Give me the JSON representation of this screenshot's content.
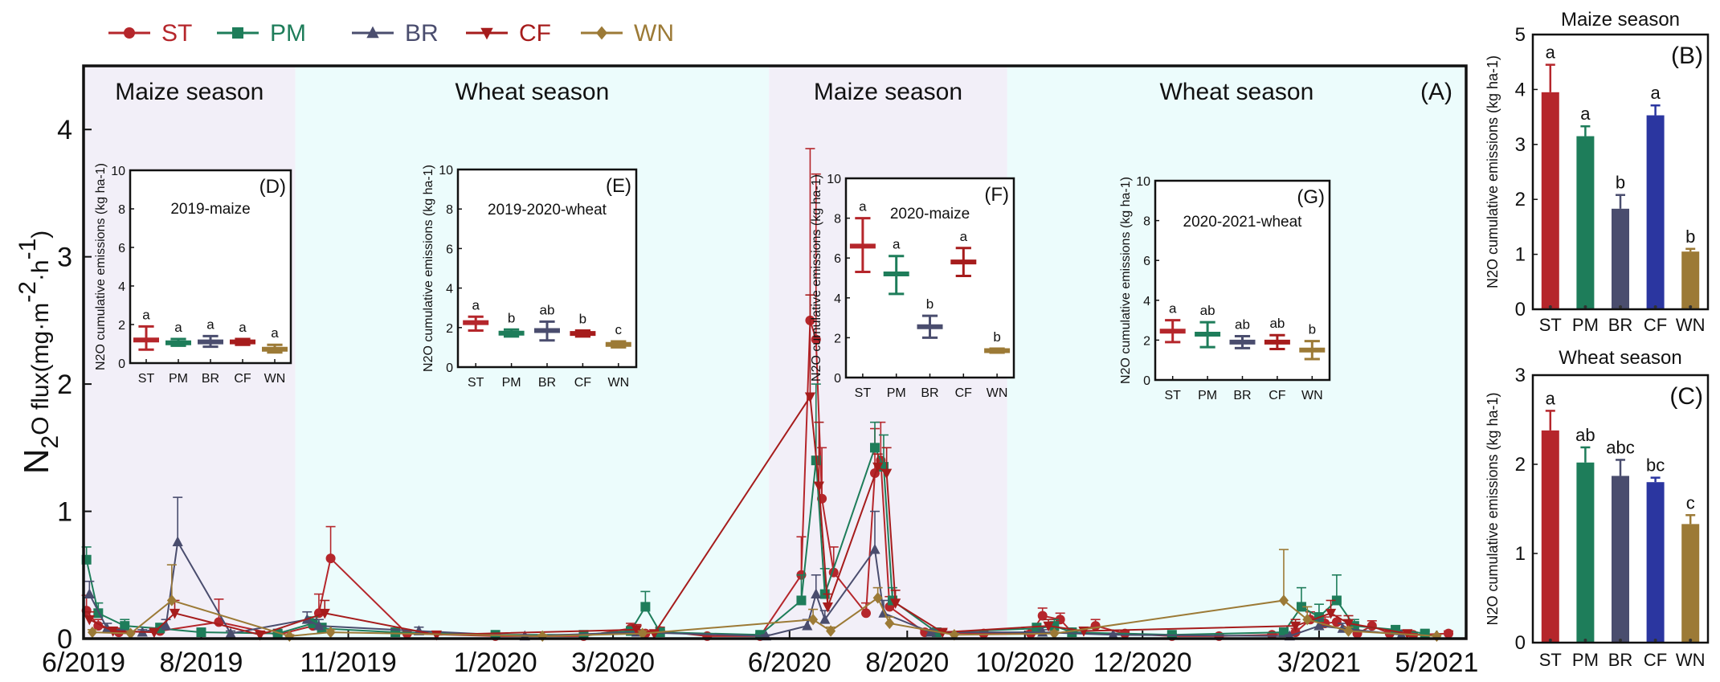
{
  "colors": {
    "ST": "#b5262b",
    "PM": "#1e7d5a",
    "BR": "#4a4d6e",
    "CF": "#a61c1c",
    "WN": "#9c7a36",
    "bar_CF": "#2b36a0",
    "maize_bg": "#f2eff8",
    "wheat_bg": "#ecfcfc"
  },
  "legend": {
    "items": [
      {
        "label": "ST",
        "marker": "circle"
      },
      {
        "label": "PM",
        "marker": "square"
      },
      {
        "label": "BR",
        "marker": "triangle-up"
      },
      {
        "label": "CF",
        "marker": "triangle-down"
      },
      {
        "label": "WN",
        "marker": "diamond"
      }
    ]
  },
  "chart_data": [
    {
      "id": "A",
      "type": "line",
      "panel_label": "(A)",
      "ylabel": "N2O flux(mg·m-2·h-1)",
      "ylabel_parts": [
        "N",
        "2",
        "O flux(mg·m",
        "-2",
        "·h",
        "-1",
        ")"
      ],
      "ylim": [
        0,
        4.5
      ],
      "yticks": [
        0,
        1,
        2,
        3,
        4
      ],
      "xlim": [
        0,
        23.5
      ],
      "xticks": [
        {
          "m": 0,
          "label": "6/2019"
        },
        {
          "m": 2,
          "label": "8/2019"
        },
        {
          "m": 4.5,
          "label": "11/2019"
        },
        {
          "m": 7,
          "label": "1/2020"
        },
        {
          "m": 9,
          "label": "3/2020"
        },
        {
          "m": 12,
          "label": "6/2020"
        },
        {
          "m": 14,
          "label": "8/2020"
        },
        {
          "m": 16,
          "label": "10/2020"
        },
        {
          "m": 18,
          "label": "12/2020"
        },
        {
          "m": 21,
          "label": "3/2021"
        },
        {
          "m": 23,
          "label": "5/2021"
        }
      ],
      "seasons": [
        {
          "label": "Maize season",
          "type": "maize",
          "start": 0,
          "end": 3.6
        },
        {
          "label": "Wheat season",
          "type": "wheat",
          "start": 3.6,
          "end": 11.65
        },
        {
          "label": "Maize season",
          "type": "maize",
          "start": 11.65,
          "end": 15.7
        },
        {
          "label": "Wheat season",
          "type": "wheat",
          "start": 15.7,
          "end": 23.5
        }
      ],
      "series": [
        {
          "name": "ST",
          "x": [
            0.05,
            0.25,
            0.6,
            1.3,
            2.3,
            3.3,
            3.9,
            4,
            4.2,
            5.5,
            7,
            8.5,
            9.3,
            9.55,
            9.8,
            10.6,
            11.5,
            12.2,
            12.35,
            12.45,
            12.55,
            12.75,
            13.3,
            13.45,
            13.55,
            13.7,
            14.3,
            15.3,
            16.1,
            16.3,
            16.6,
            16.8,
            17.2,
            17.7,
            18.5,
            19.3,
            20.2,
            20.6,
            20.85,
            21.1,
            21.3,
            21.65,
            21.9,
            22.2,
            22.6,
            23.2
          ],
          "y": [
            0.22,
            0.1,
            0.05,
            0.06,
            0.13,
            0.03,
            0.1,
            0.2,
            0.63,
            0.04,
            0.02,
            0.02,
            0.08,
            0.04,
            0.06,
            0.02,
            0.02,
            0.5,
            2.5,
            2.35,
            1.1,
            0.52,
            0.2,
            1.3,
            1.4,
            0.25,
            0.05,
            0.04,
            0.04,
            0.18,
            0.15,
            0.05,
            0.1,
            0.04,
            0.02,
            0.02,
            0.03,
            0.05,
            0.15,
            0.12,
            0.13,
            0.04,
            0.1,
            0.04,
            0.03,
            0.04
          ],
          "err": [
            0.12,
            0.05,
            0.03,
            0.03,
            0.18,
            0.02,
            0.05,
            0.15,
            0.25,
            0.02,
            0.01,
            0.01,
            0.04,
            0.02,
            0.03,
            0.01,
            0.01,
            0.3,
            1.35,
            1.3,
            0.4,
            0.2,
            0.08,
            0.35,
            0.3,
            0.08,
            0.02,
            0.02,
            0.02,
            0.06,
            0.05,
            0.03,
            0.05,
            0.02,
            0.01,
            0.01,
            0.01,
            0.03,
            0.06,
            0.05,
            0.05,
            0.02,
            0.04,
            0.02,
            0.02,
            0.02
          ]
        },
        {
          "name": "PM",
          "x": [
            0.05,
            0.25,
            0.7,
            1.3,
            2,
            3.3,
            3.9,
            4.05,
            5.3,
            7,
            8.5,
            9.3,
            9.55,
            9.8,
            11.5,
            12.2,
            12.45,
            12.6,
            13.45,
            13.6,
            13.75,
            14.5,
            16.2,
            16.5,
            16.8,
            18.5,
            20.4,
            20.7,
            21.0,
            21.3,
            21.6,
            22.3,
            22.8
          ],
          "y": [
            0.62,
            0.2,
            0.1,
            0.08,
            0.05,
            0.04,
            0.12,
            0.08,
            0.05,
            0.03,
            0.03,
            0.06,
            0.25,
            0.05,
            0.03,
            0.3,
            1.4,
            0.35,
            1.5,
            1.35,
            0.3,
            0.05,
            0.08,
            0.1,
            0.05,
            0.03,
            0.05,
            0.25,
            0.17,
            0.3,
            0.1,
            0.07,
            0.04
          ],
          "err": [
            0.1,
            0.08,
            0.05,
            0.04,
            0.02,
            0.02,
            0.05,
            0.04,
            0.02,
            0.01,
            0.01,
            0.03,
            0.12,
            0.02,
            0.01,
            0.2,
            0.6,
            0.2,
            0.2,
            0.25,
            0.1,
            0.02,
            0.04,
            0.05,
            0.02,
            0.01,
            0.02,
            0.15,
            0.1,
            0.2,
            0.05,
            0.03,
            0.02
          ]
        },
        {
          "name": "BR",
          "x": [
            0.1,
            0.4,
            1.0,
            1.4,
            1.6,
            2.5,
            3.8,
            4.0,
            5.7,
            7.5,
            9.4,
            11.6,
            12.3,
            12.45,
            12.6,
            13.45,
            13.6,
            14.4,
            16.3,
            17.5,
            20.5,
            21.0,
            21.4,
            22.4
          ],
          "y": [
            0.35,
            0.08,
            0.05,
            0.1,
            0.76,
            0.04,
            0.15,
            0.1,
            0.06,
            0.02,
            0.05,
            0.02,
            0.1,
            0.35,
            0.15,
            0.7,
            0.2,
            0.05,
            0.05,
            0.03,
            0.02,
            0.1,
            0.08,
            0.03
          ],
          "err": [
            0.1,
            0.04,
            0.02,
            0.05,
            0.35,
            0.02,
            0.06,
            0.05,
            0.03,
            0.01,
            0.02,
            0.01,
            0.05,
            0.15,
            0.07,
            0.3,
            0.1,
            0.02,
            0.02,
            0.01,
            0.01,
            0.05,
            0.04,
            0.01
          ]
        },
        {
          "name": "CF",
          "x": [
            0.1,
            0.5,
            1.2,
            1.55,
            3.0,
            4.1,
            6.0,
            9.4,
            9.7,
            12.35,
            12.5,
            12.65,
            13.5,
            13.65,
            13.8,
            14.6,
            16.4,
            17.0,
            20.6,
            21.2,
            21.5,
            22.5
          ],
          "y": [
            0.15,
            0.06,
            0.05,
            0.2,
            0.03,
            0.2,
            0.03,
            0.07,
            0.04,
            1.9,
            1.2,
            0.25,
            1.35,
            1.3,
            0.28,
            0.05,
            0.1,
            0.06,
            0.1,
            0.2,
            0.12,
            0.04
          ],
          "err": [
            0.06,
            0.03,
            0.02,
            0.1,
            0.01,
            0.1,
            0.01,
            0.04,
            0.02,
            0.8,
            0.5,
            0.1,
            0.1,
            0.2,
            0.1,
            0.02,
            0.05,
            0.03,
            0.05,
            0.1,
            0.06,
            0.02
          ]
        },
        {
          "name": "WN",
          "x": [
            0.15,
            0.8,
            1.5,
            3.5,
            4.2,
            7.8,
            9.5,
            12.4,
            12.7,
            13.5,
            13.7,
            14.8,
            16.5,
            20.4,
            20.8,
            21.5,
            23.0
          ],
          "y": [
            0.05,
            0.04,
            0.3,
            0.02,
            0.05,
            0.02,
            0.04,
            0.15,
            0.06,
            0.32,
            0.12,
            0.03,
            0.04,
            0.3,
            0.15,
            0.06,
            0.02
          ],
          "err": [
            0.02,
            0.02,
            0.28,
            0.01,
            0.02,
            0.01,
            0.02,
            0.08,
            0.03,
            0.08,
            0.05,
            0.01,
            0.02,
            0.4,
            0.1,
            0.03,
            0.01
          ]
        }
      ]
    },
    {
      "id": "D",
      "type": "boxplot",
      "panel_label": "(D)",
      "title": "2019-maize",
      "ylabel": "N2O cumulative emissions (kg ha-1)",
      "ylim": [
        0,
        10
      ],
      "yticks": [
        0,
        2,
        4,
        6,
        8,
        10
      ],
      "categories": [
        "ST",
        "PM",
        "BR",
        "CF",
        "WN"
      ],
      "mean": [
        1.2,
        1.05,
        1.1,
        1.1,
        0.72
      ],
      "low": [
        0.7,
        0.9,
        0.85,
        0.95,
        0.55
      ],
      "high": [
        1.9,
        1.25,
        1.4,
        1.25,
        0.95
      ],
      "letters": [
        "a",
        "a",
        "a",
        "a",
        "a"
      ]
    },
    {
      "id": "E",
      "type": "boxplot",
      "panel_label": "(E)",
      "title": "2019-2020-wheat",
      "ylabel": "N2O cumulative emissions (kg ha-1)",
      "ylim": [
        0,
        10
      ],
      "yticks": [
        0,
        2,
        4,
        6,
        8,
        10
      ],
      "categories": [
        "ST",
        "PM",
        "BR",
        "CF",
        "WN"
      ],
      "mean": [
        2.25,
        1.72,
        1.85,
        1.7,
        1.15
      ],
      "low": [
        1.85,
        1.55,
        1.35,
        1.55,
        1.0
      ],
      "high": [
        2.55,
        1.9,
        2.3,
        1.85,
        1.3
      ],
      "letters": [
        "a",
        "b",
        "ab",
        "b",
        "c"
      ]
    },
    {
      "id": "F",
      "type": "boxplot",
      "panel_label": "(F)",
      "title": "2020-maize",
      "ylabel": "N2O cumulative emissions (kg ha-1)",
      "ylim": [
        0,
        10
      ],
      "yticks": [
        0,
        2,
        4,
        6,
        8,
        10
      ],
      "categories": [
        "ST",
        "PM",
        "BR",
        "CF",
        "WN"
      ],
      "mean": [
        6.6,
        5.2,
        2.55,
        5.8,
        1.35
      ],
      "low": [
        5.3,
        4.2,
        2.0,
        5.1,
        1.25
      ],
      "high": [
        8.0,
        6.1,
        3.1,
        6.5,
        1.45
      ],
      "letters": [
        "a",
        "a",
        "b",
        "a",
        "b"
      ]
    },
    {
      "id": "G",
      "type": "boxplot",
      "panel_label": "(G)",
      "title": "2020-2021-wheat",
      "ylabel": "N2O cumulative emissions (kg ha-1)",
      "ylim": [
        0,
        10
      ],
      "yticks": [
        0,
        2,
        4,
        6,
        8,
        10
      ],
      "categories": [
        "ST",
        "PM",
        "BR",
        "CF",
        "WN"
      ],
      "mean": [
        2.45,
        2.3,
        1.9,
        1.9,
        1.5
      ],
      "low": [
        1.9,
        1.65,
        1.6,
        1.55,
        1.05
      ],
      "high": [
        3.0,
        2.9,
        2.2,
        2.25,
        1.95
      ],
      "letters": [
        "a",
        "ab",
        "ab",
        "ab",
        "b"
      ]
    },
    {
      "id": "B",
      "type": "bar",
      "panel_label": "(B)",
      "title": "Maize season",
      "ylabel": "N2O cumulative emissions (kg ha-1)",
      "ylim": [
        0,
        5
      ],
      "yticks": [
        0,
        1,
        2,
        3,
        4,
        5
      ],
      "categories": [
        "ST",
        "PM",
        "BR",
        "CF",
        "WN"
      ],
      "values": [
        3.95,
        3.15,
        1.83,
        3.53,
        1.05
      ],
      "err": [
        0.5,
        0.18,
        0.25,
        0.18,
        0.05
      ],
      "letters": [
        "a",
        "a",
        "b",
        "a",
        "b"
      ]
    },
    {
      "id": "C",
      "type": "bar",
      "panel_label": "(C)",
      "title": "Wheat season",
      "ylabel": "N2O cumulative emissions (kg ha-1)",
      "ylim": [
        0,
        3
      ],
      "yticks": [
        0,
        1,
        2,
        3
      ],
      "categories": [
        "ST",
        "PM",
        "BR",
        "CF",
        "WN"
      ],
      "values": [
        2.38,
        2.02,
        1.87,
        1.8,
        1.33
      ],
      "err": [
        0.22,
        0.17,
        0.18,
        0.05,
        0.1
      ],
      "letters": [
        "a",
        "ab",
        "abc",
        "bc",
        "c"
      ]
    }
  ]
}
